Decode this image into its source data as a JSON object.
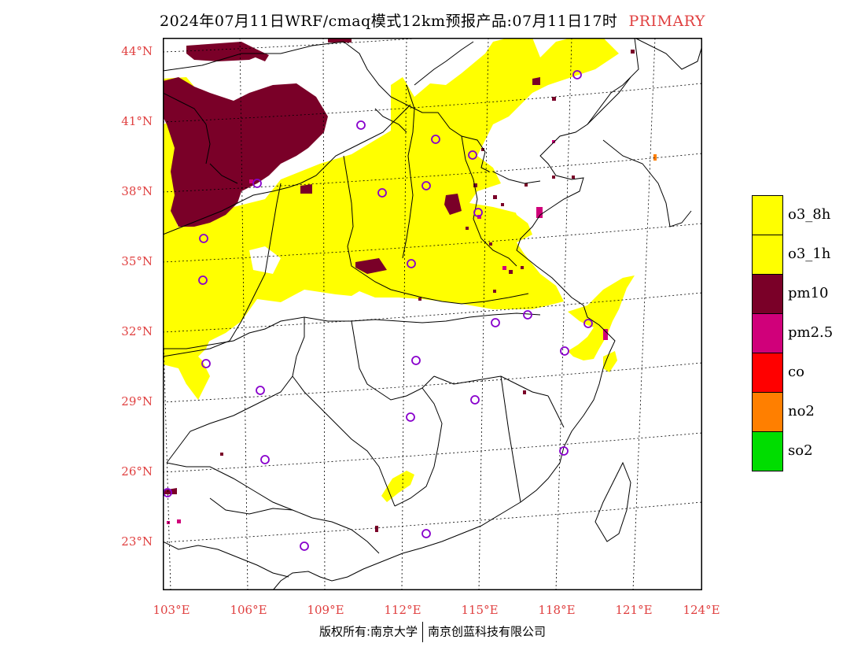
{
  "title": {
    "text": "2024年07月11日WRF/cmaq模式12km预报产品:07月11日17时",
    "tag": "PRIMARY"
  },
  "axes": {
    "lat_labels": [
      "44°N",
      "41°N",
      "38°N",
      "35°N",
      "32°N",
      "29°N",
      "26°N",
      "23°N"
    ],
    "lon_labels": [
      "103°E",
      "106°E",
      "109°E",
      "112°E",
      "115°E",
      "118°E",
      "121°E",
      "124°E"
    ]
  },
  "legend": [
    {
      "label": "o3_8h",
      "color": "#ffff00"
    },
    {
      "label": "o3_1h",
      "color": "#ffff00"
    },
    {
      "label": "pm10",
      "color": "#7a0028"
    },
    {
      "label": "pm2.5",
      "color": "#d0007a"
    },
    {
      "label": "co",
      "color": "#ff0000"
    },
    {
      "label": "no2",
      "color": "#ff7f00"
    },
    {
      "label": "so2",
      "color": "#00dd00"
    }
  ],
  "footer": {
    "left": "版权所有:南京大学",
    "right": "南京创蓝科技有限公司"
  }
}
